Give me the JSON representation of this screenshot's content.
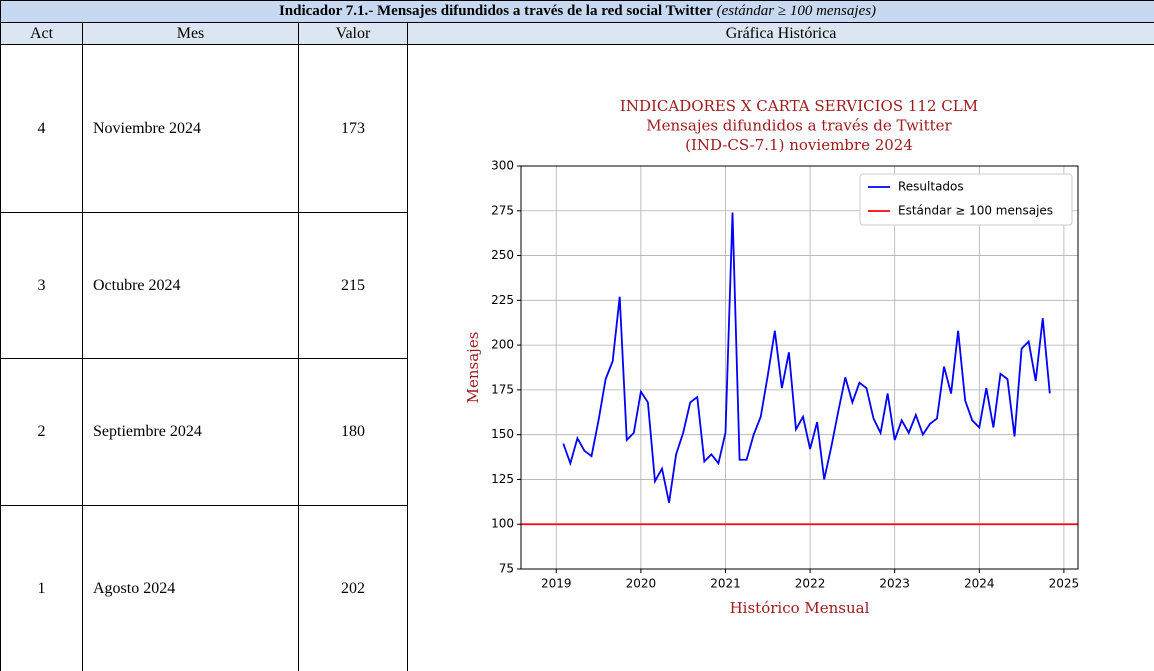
{
  "header": {
    "title": "Indicador 7.1.- Mensajes difundidos a través de la red social Twitter",
    "note": "(estándar ≥ 100 mensajes)"
  },
  "table": {
    "columns": [
      "Act",
      "Mes",
      "Valor",
      "Gráfica Histórica"
    ],
    "rows": [
      [
        4,
        "Noviembre 2024",
        173
      ],
      [
        3,
        "Octubre 2024",
        215
      ],
      [
        2,
        "Septiembre 2024",
        180
      ],
      [
        1,
        "Agosto 2024",
        202
      ]
    ]
  },
  "chart_data": {
    "type": "line",
    "title": [
      "INDICADORES X CARTA SERVICIOS 112 CLM",
      "Mensajes difundidos a través de Twitter",
      "(IND-CS-7.1) noviembre 2024"
    ],
    "x_label": "Histórico Mensual",
    "y_label": "Mensajes",
    "x": [
      "2019-02",
      "2019-03",
      "2019-04",
      "2019-05",
      "2019-06",
      "2019-07",
      "2019-08",
      "2019-09",
      "2019-10",
      "2019-11",
      "2019-12",
      "2020-01",
      "2020-02",
      "2020-03",
      "2020-04",
      "2020-05",
      "2020-06",
      "2020-07",
      "2020-08",
      "2020-09",
      "2020-10",
      "2020-11",
      "2020-12",
      "2021-01",
      "2021-02",
      "2021-03",
      "2021-04",
      "2021-05",
      "2021-06",
      "2021-07",
      "2021-08",
      "2021-09",
      "2021-10",
      "2021-11",
      "2021-12",
      "2022-01",
      "2022-02",
      "2022-03",
      "2022-04",
      "2022-05",
      "2022-06",
      "2022-07",
      "2022-08",
      "2022-09",
      "2022-10",
      "2022-11",
      "2022-12",
      "2023-01",
      "2023-02",
      "2023-03",
      "2023-04",
      "2023-05",
      "2023-06",
      "2023-07",
      "2023-08",
      "2023-09",
      "2023-10",
      "2023-11",
      "2023-12",
      "2024-01",
      "2024-02",
      "2024-03",
      "2024-04",
      "2024-05",
      "2024-06",
      "2024-07",
      "2024-08",
      "2024-09",
      "2024-10",
      "2024-11"
    ],
    "series": [
      {
        "name": "Resultados",
        "color": "#0000ff",
        "values": [
          145,
          134,
          148,
          141,
          138,
          158,
          181,
          191,
          227,
          147,
          151,
          174,
          168,
          124,
          131,
          112,
          139,
          151,
          168,
          171,
          135,
          139,
          134,
          151,
          274,
          136,
          136,
          150,
          160,
          183,
          208,
          176,
          196,
          153,
          160,
          142,
          157,
          125,
          143,
          163,
          182,
          168,
          179,
          176,
          159,
          151,
          173,
          147,
          158,
          151,
          161,
          150,
          156,
          159,
          188,
          173,
          208,
          169,
          158,
          154,
          176,
          154,
          184,
          181,
          149,
          198,
          202,
          180,
          215,
          173
        ]
      }
    ],
    "reference_line": {
      "name": "Estándar ≥ 100 mensajes",
      "value": 100,
      "color": "#ff0000"
    },
    "xlim": [
      "2018-08",
      "2025-03"
    ],
    "xticks": [
      "2019",
      "2020",
      "2021",
      "2022",
      "2023",
      "2024",
      "2025"
    ],
    "ylim": [
      75,
      300
    ],
    "yticks": [
      75,
      100,
      125,
      150,
      175,
      200,
      225,
      250,
      275,
      300
    ],
    "grid": true,
    "legend": "upper right"
  }
}
